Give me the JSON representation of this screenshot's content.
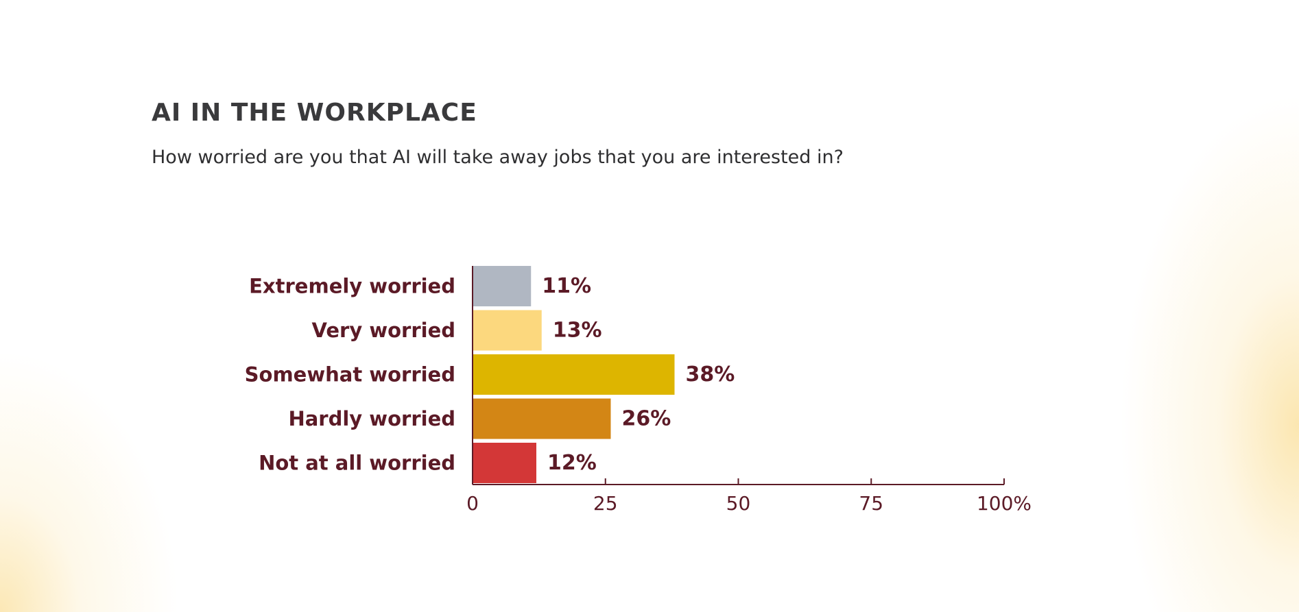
{
  "title": "AI IN THE WORKPLACE",
  "subtitle": "How worried are you that AI will take away jobs that you are interested in?",
  "colors": {
    "label_text": "#5b1a26",
    "axis": "#5b1a26",
    "bars": [
      "#b0b7c2",
      "#fcd87e",
      "#ddb500",
      "#d38615",
      "#d33737"
    ]
  },
  "chart_data": {
    "type": "bar",
    "orientation": "horizontal",
    "categories": [
      "Extremely worried",
      "Very worried",
      "Somewhat worried",
      "Hardly worried",
      "Not at all worried"
    ],
    "values": [
      11,
      13,
      38,
      26,
      12
    ],
    "data_labels": [
      "11%",
      "13%",
      "38%",
      "26%",
      "12%"
    ],
    "xlim": [
      0,
      100
    ],
    "x_ticks": [
      0,
      25,
      50,
      75,
      100
    ],
    "x_tick_labels": [
      "0",
      "25",
      "50",
      "75",
      "100%"
    ],
    "grid": false,
    "legend": "none"
  }
}
